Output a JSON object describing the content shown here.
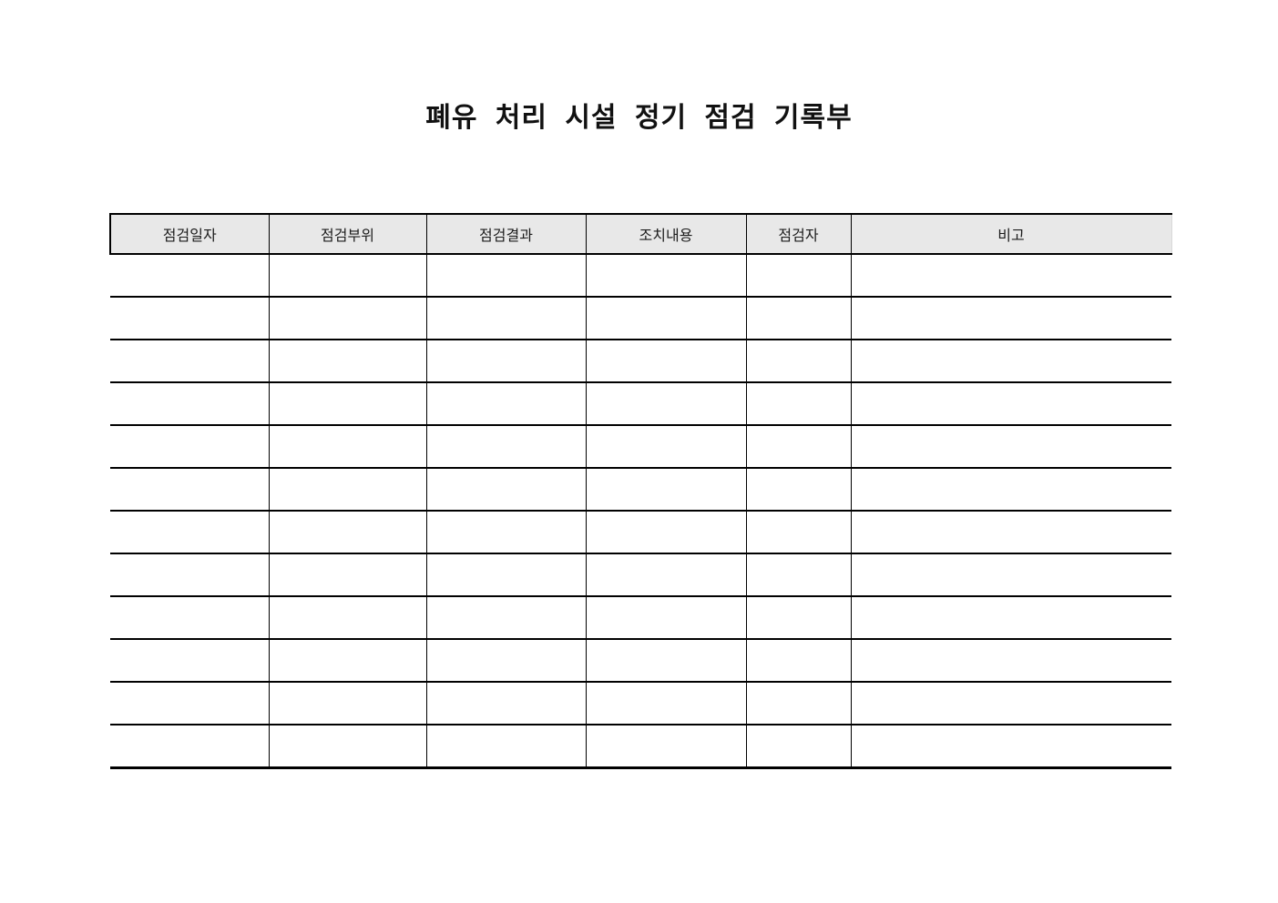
{
  "page": {
    "background": "#ffffff"
  },
  "title": {
    "text": "폐유 처리 시설 정기 점검 기록부"
  },
  "table": {
    "header_bg": "#e8e8e8",
    "line_color": "#000000",
    "columns": [
      {
        "label": "점검일자"
      },
      {
        "label": "점검부위"
      },
      {
        "label": "점검결과"
      },
      {
        "label": "조치내용"
      },
      {
        "label": "점검자"
      },
      {
        "label": "비고"
      }
    ],
    "empty_row_count": 12
  }
}
